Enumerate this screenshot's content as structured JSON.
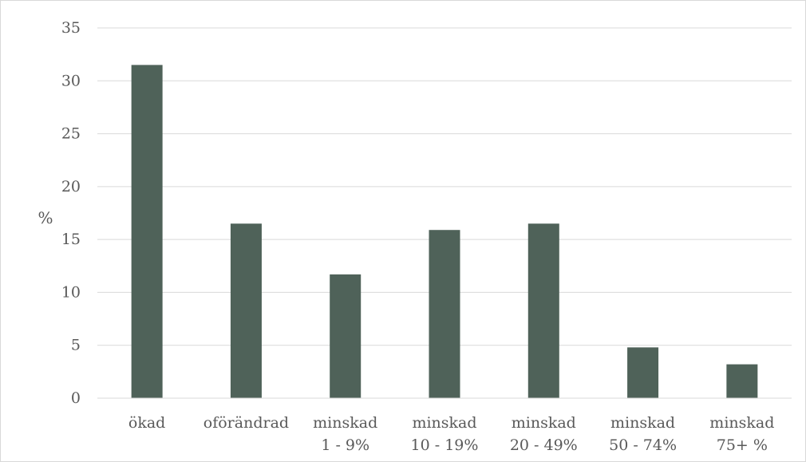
{
  "chart_data": {
    "type": "bar",
    "title": "",
    "xlabel": "",
    "ylabel": "%",
    "ylim": [
      0,
      35
    ],
    "yticks": [
      0,
      5,
      10,
      15,
      20,
      25,
      30,
      35
    ],
    "grid": true,
    "legend": "none",
    "bar_color": "#4f6259",
    "categories": [
      [
        "ökad"
      ],
      [
        "oförändrad"
      ],
      [
        "minskad",
        "1 - 9%"
      ],
      [
        "minskad",
        "10 - 19%"
      ],
      [
        "minskad",
        "20 - 49%"
      ],
      [
        "minskad",
        "50 - 74%"
      ],
      [
        "minskad",
        "75+ %"
      ]
    ],
    "values": [
      31.5,
      16.5,
      11.7,
      15.9,
      16.5,
      4.8,
      3.2
    ]
  }
}
